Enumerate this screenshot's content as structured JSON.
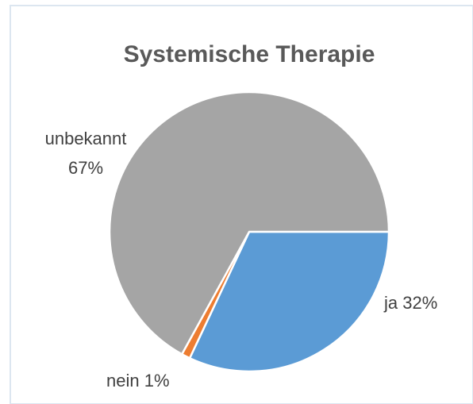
{
  "chart_data": {
    "type": "pie",
    "title": "Systemische Therapie",
    "categories": [
      "ja",
      "nein",
      "unbekannt"
    ],
    "values": [
      32,
      1,
      67
    ],
    "value_labels": [
      "32%",
      "1%",
      "67%"
    ],
    "colors": [
      "#5b9bd5",
      "#ed7d31",
      "#a5a5a5"
    ]
  }
}
